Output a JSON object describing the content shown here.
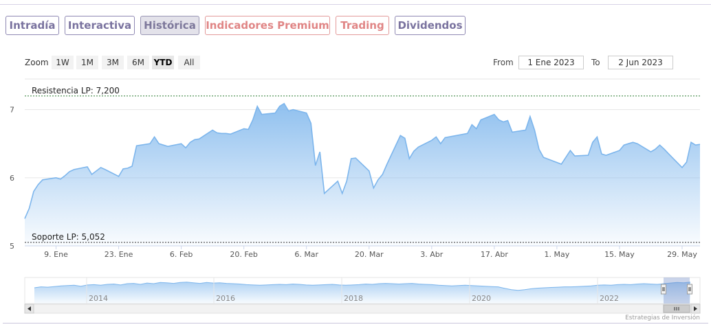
{
  "tabs": [
    {
      "label": "Intradía",
      "style": "normal"
    },
    {
      "label": "Interactiva",
      "style": "normal"
    },
    {
      "label": "Histórica",
      "style": "active"
    },
    {
      "label": "Indicadores Premium",
      "style": "premium"
    },
    {
      "label": "Trading",
      "style": "premium"
    },
    {
      "label": "Dividendos",
      "style": "normal"
    }
  ],
  "zoom": {
    "label": "Zoom",
    "buttons": [
      "1W",
      "1M",
      "3M",
      "6M",
      "YTD",
      "All"
    ],
    "selected": "YTD"
  },
  "range": {
    "from_label": "From",
    "from_value": "1 Ene 2023",
    "to_label": "To",
    "to_value": "2 Jun 2023"
  },
  "credit": "Estrategias de Inversión",
  "colors": {
    "series_line": "#7cb5ec",
    "resistance_line": "#2e7d32",
    "support_line": "#333333",
    "tab_normal": "#7a739f",
    "tab_premium": "#e08585"
  },
  "chart_data": {
    "type": "area",
    "y_ticks": [
      "7",
      "6",
      "5"
    ],
    "ylim": [
      5.0,
      7.45
    ],
    "x_tick_labels": [
      "9. Ene",
      "23. Ene",
      "6. Feb",
      "20. Feb",
      "6. Mar",
      "20. Mar",
      "3. Abr",
      "17. Abr",
      "1. May",
      "15. May",
      "29. May"
    ],
    "x_tick_dates": [
      "2023-01-09",
      "2023-01-23",
      "2023-02-06",
      "2023-02-20",
      "2023-03-06",
      "2023-03-20",
      "2023-04-03",
      "2023-04-17",
      "2023-05-01",
      "2023-05-15",
      "2023-05-29"
    ],
    "plot_lines": [
      {
        "label": "Resistencia LP: 7,200",
        "value": 7.2
      },
      {
        "label": "Soporte LP: 5,052",
        "value": 5.052
      }
    ],
    "series": [
      {
        "x": [
          "2023-01-02",
          "2023-01-03",
          "2023-01-04",
          "2023-01-05",
          "2023-01-06",
          "2023-01-09",
          "2023-01-10",
          "2023-01-11",
          "2023-01-12",
          "2023-01-13",
          "2023-01-16",
          "2023-01-17",
          "2023-01-18",
          "2023-01-19",
          "2023-01-20",
          "2023-01-23",
          "2023-01-24",
          "2023-01-25",
          "2023-01-26",
          "2023-01-27",
          "2023-01-30",
          "2023-01-31",
          "2023-02-01",
          "2023-02-02",
          "2023-02-03",
          "2023-02-06",
          "2023-02-07",
          "2023-02-08",
          "2023-02-09",
          "2023-02-10",
          "2023-02-13",
          "2023-02-14",
          "2023-02-15",
          "2023-02-16",
          "2023-02-17",
          "2023-02-20",
          "2023-02-21",
          "2023-02-22",
          "2023-02-23",
          "2023-02-24",
          "2023-02-27",
          "2023-02-28",
          "2023-03-01",
          "2023-03-02",
          "2023-03-03",
          "2023-03-06",
          "2023-03-07",
          "2023-03-08",
          "2023-03-09",
          "2023-03-10",
          "2023-03-13",
          "2023-03-14",
          "2023-03-15",
          "2023-03-16",
          "2023-03-17",
          "2023-03-20",
          "2023-03-21",
          "2023-03-22",
          "2023-03-23",
          "2023-03-24",
          "2023-03-27",
          "2023-03-28",
          "2023-03-29",
          "2023-03-30",
          "2023-03-31",
          "2023-04-03",
          "2023-04-04",
          "2023-04-05",
          "2023-04-06",
          "2023-04-11",
          "2023-04-12",
          "2023-04-13",
          "2023-04-14",
          "2023-04-17",
          "2023-04-18",
          "2023-04-19",
          "2023-04-20",
          "2023-04-21",
          "2023-04-24",
          "2023-04-25",
          "2023-04-26",
          "2023-04-27",
          "2023-04-28",
          "2023-05-02",
          "2023-05-03",
          "2023-05-04",
          "2023-05-05",
          "2023-05-08",
          "2023-05-09",
          "2023-05-10",
          "2023-05-11",
          "2023-05-12",
          "2023-05-15",
          "2023-05-16",
          "2023-05-17",
          "2023-05-18",
          "2023-05-19",
          "2023-05-22",
          "2023-05-23",
          "2023-05-24",
          "2023-05-25",
          "2023-05-26",
          "2023-05-29",
          "2023-05-30",
          "2023-05-31",
          "2023-06-01",
          "2023-06-02"
        ],
        "values": [
          5.4,
          5.55,
          5.8,
          5.9,
          5.97,
          6.0,
          5.98,
          6.03,
          6.09,
          6.12,
          6.16,
          6.05,
          6.1,
          6.15,
          6.12,
          6.02,
          6.13,
          6.14,
          6.17,
          6.47,
          6.5,
          6.6,
          6.5,
          6.48,
          6.46,
          6.5,
          6.44,
          6.52,
          6.56,
          6.57,
          6.7,
          6.66,
          6.65,
          6.65,
          6.64,
          6.72,
          6.71,
          6.85,
          7.05,
          6.93,
          6.95,
          7.05,
          7.09,
          6.98,
          7.0,
          6.95,
          6.8,
          6.18,
          6.38,
          5.77,
          5.95,
          5.77,
          5.95,
          6.28,
          6.29,
          6.1,
          5.85,
          5.97,
          6.05,
          6.2,
          6.62,
          6.58,
          6.28,
          6.39,
          6.45,
          6.55,
          6.6,
          6.5,
          6.59,
          6.65,
          6.78,
          6.72,
          6.85,
          6.93,
          6.85,
          6.82,
          6.84,
          6.67,
          6.7,
          6.9,
          6.7,
          6.42,
          6.3,
          6.2,
          6.3,
          6.4,
          6.32,
          6.33,
          6.52,
          6.6,
          6.35,
          6.33,
          6.4,
          6.48,
          6.5,
          6.52,
          6.5,
          6.38,
          6.42,
          6.48,
          6.42,
          6.35,
          6.15,
          6.23,
          6.52,
          6.48,
          6.49
        ]
      }
    ],
    "navigator": {
      "labels": [
        "2014",
        "2016",
        "2018",
        "2020",
        "2022"
      ],
      "values": [
        5.2,
        5.5,
        5.4,
        5.6,
        5.8,
        5.9,
        6.0,
        5.7,
        6.1,
        6.2,
        6.0,
        6.3,
        6.4,
        6.1,
        6.5,
        6.6,
        6.3,
        6.7,
        6.5,
        6.9,
        6.8,
        6.6,
        6.9,
        7.0,
        6.8,
        6.6,
        6.9,
        6.7,
        6.8,
        6.6,
        6.5,
        6.4,
        6.2,
        6.1,
        6.0,
        6.1,
        6.2,
        6.3,
        6.2,
        6.4,
        6.3,
        6.1,
        6.0,
        6.1,
        6.2,
        6.3,
        6.1,
        6.0,
        6.1,
        6.2,
        6.4,
        6.3,
        6.5,
        6.6,
        6.5,
        6.4,
        6.5,
        6.6,
        6.4,
        6.3,
        6.2,
        6.0,
        5.9,
        5.8,
        5.9,
        6.0,
        5.9,
        5.8,
        5.7,
        5.6,
        5.5,
        5.0,
        4.6,
        4.4,
        4.6,
        4.9,
        5.1,
        5.2,
        5.3,
        5.4,
        5.5,
        5.5,
        5.6,
        5.7,
        5.8,
        6.0,
        6.1,
        6.0,
        6.2,
        6.3,
        6.2,
        6.4,
        6.5,
        6.4,
        6.3,
        6.5,
        6.7,
        6.9,
        6.8,
        7.0
      ]
    }
  }
}
